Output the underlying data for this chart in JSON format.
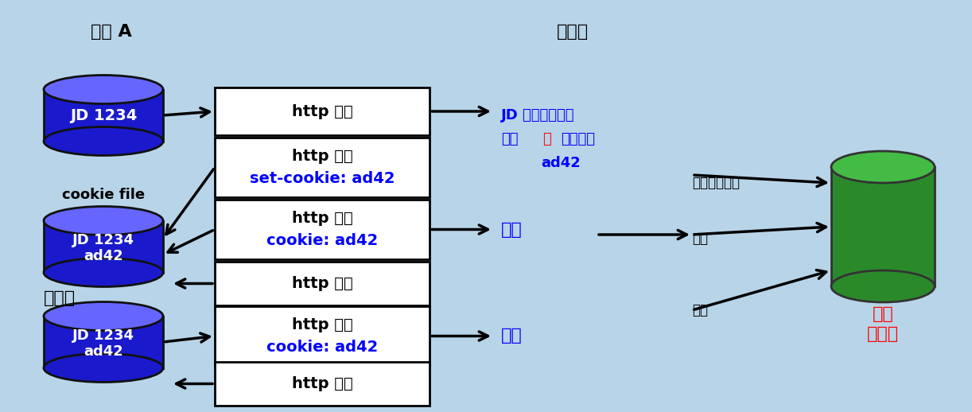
{
  "bg_color": "#b8d4e8",
  "title_user": "用户 A",
  "title_server": "服务器",
  "label_cookie_file": "cookie file",
  "label_days_later": "几天后",
  "label_backend_line1": "后台",
  "label_backend_line2": "数据库",
  "disk_color": "#1a1acc",
  "disk_top_color": "#6666ff",
  "db_body_color": "#2a8a2a",
  "db_top_color": "#44bb44",
  "server_line1": "JD 服务器为用户",
  "server_line2_blue1": "创建",
  "server_line2_red": "唯",
  "server_line2_blue2": "一识别码",
  "server_line3": "ad42",
  "label_generate": "产生一个项目",
  "label_chuli1": "处理",
  "label_chuli2": "处理",
  "label_fangwen1": "访问",
  "label_fangwen2": "访问"
}
